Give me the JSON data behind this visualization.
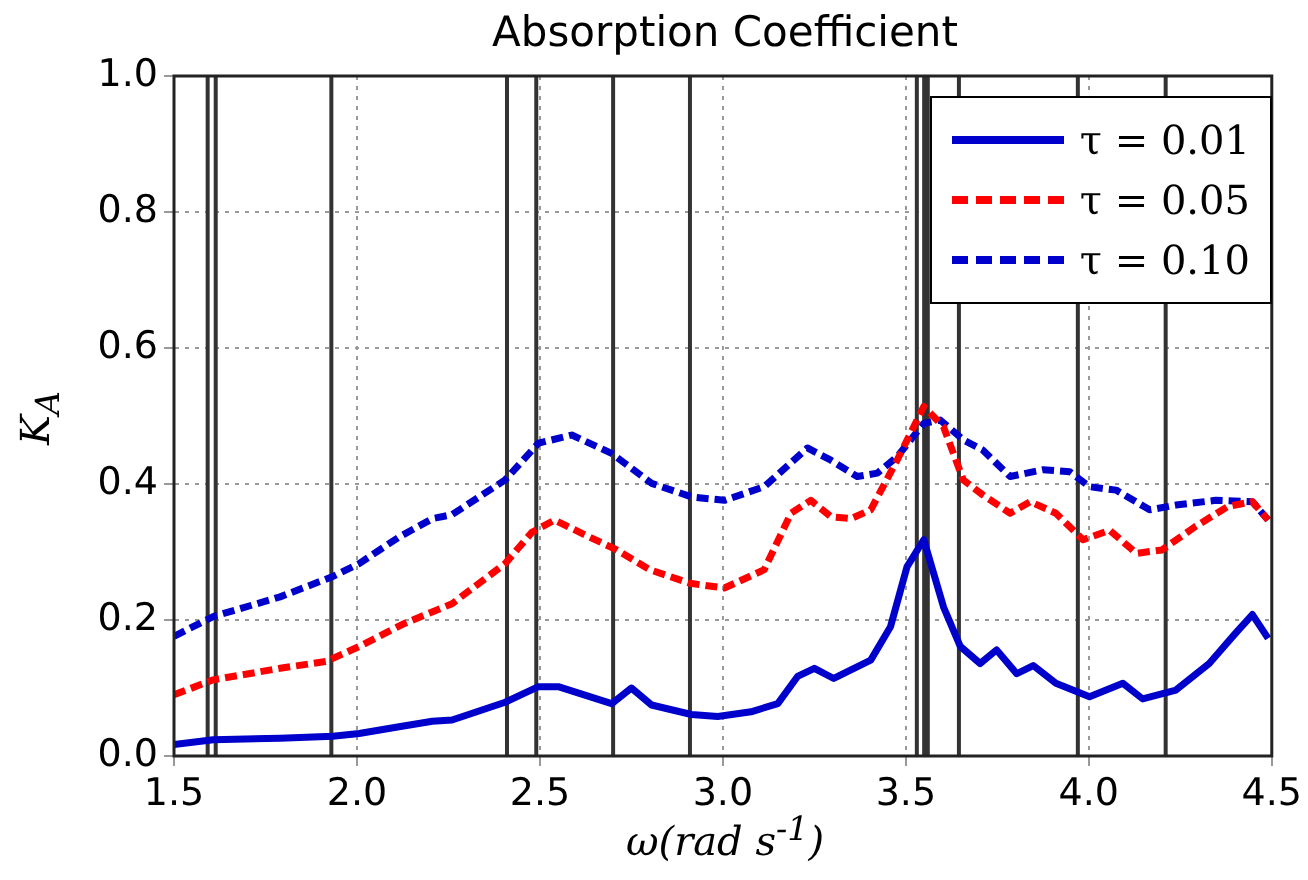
{
  "chart_data": {
    "type": "line",
    "title": "Absorption Coefficient",
    "xlabel": "ω(rad s$^{-1}$)",
    "ylabel": "K$_{A}$",
    "xlim": [
      1.5,
      4.5
    ],
    "ylim": [
      0,
      1
    ],
    "xticks": [
      1.5,
      {
        "value": 2,
        "label": "2.0"
      },
      2.5,
      {
        "value": 3,
        "label": "3.0"
      },
      3.5,
      {
        "value": 4,
        "label": "4.0"
      },
      4.5
    ],
    "yticks": [
      {
        "value": 0,
        "label": "0.0"
      },
      0.2,
      0.4,
      0.6,
      0.8,
      {
        "value": 1,
        "label": "1.0"
      }
    ],
    "grid": true,
    "legend": "top right",
    "series": [
      {
        "name": "τ = 0.01",
        "color": "#0000cc",
        "line_style": "solid",
        "x": [
          1.5,
          1.607,
          1.79,
          1.934,
          2.006,
          2.115,
          2.206,
          2.26,
          2.405,
          2.496,
          2.55,
          2.696,
          2.75,
          2.805,
          2.914,
          2.986,
          3.077,
          3.15,
          3.204,
          3.25,
          3.303,
          3.404,
          3.458,
          3.503,
          3.549,
          3.603,
          3.649,
          3.703,
          3.748,
          3.803,
          3.848,
          3.91,
          4.002,
          4.093,
          4.147,
          4.238,
          4.329,
          4.4,
          4.447,
          4.49
        ],
        "values": [
          0.017,
          0.024,
          0.026,
          0.029,
          0.033,
          0.043,
          0.051,
          0.053,
          0.079,
          0.102,
          0.102,
          0.077,
          0.1,
          0.075,
          0.061,
          0.058,
          0.065,
          0.077,
          0.117,
          0.129,
          0.114,
          0.141,
          0.19,
          0.278,
          0.318,
          0.219,
          0.161,
          0.136,
          0.156,
          0.121,
          0.133,
          0.107,
          0.087,
          0.107,
          0.084,
          0.097,
          0.136,
          0.18,
          0.208,
          0.173
        ]
      },
      {
        "name": "τ = 0.05",
        "color": "#ff0000",
        "line_style": "dashed",
        "x": [
          1.5,
          1.607,
          1.79,
          1.915,
          2.006,
          2.13,
          2.26,
          2.405,
          2.478,
          2.54,
          2.62,
          2.71,
          2.8,
          2.91,
          3.004,
          3.113,
          3.186,
          3.24,
          3.295,
          3.35,
          3.404,
          3.476,
          3.549,
          3.603,
          3.657,
          3.71,
          3.785,
          3.84,
          3.91,
          3.984,
          4.057,
          4.13,
          4.2,
          4.29,
          4.38,
          4.447,
          4.49
        ],
        "values": [
          0.09,
          0.112,
          0.129,
          0.139,
          0.161,
          0.195,
          0.224,
          0.283,
          0.329,
          0.347,
          0.326,
          0.303,
          0.274,
          0.254,
          0.247,
          0.274,
          0.357,
          0.376,
          0.352,
          0.349,
          0.362,
          0.435,
          0.514,
          0.484,
          0.406,
          0.384,
          0.357,
          0.374,
          0.357,
          0.318,
          0.332,
          0.298,
          0.303,
          0.337,
          0.367,
          0.374,
          0.347
        ]
      },
      {
        "name": "τ = 0.10",
        "color": "#0000cc",
        "line_style": "dashed",
        "x": [
          1.5,
          1.607,
          1.79,
          1.934,
          2.006,
          2.115,
          2.206,
          2.26,
          2.405,
          2.496,
          2.587,
          2.696,
          2.805,
          2.914,
          3.004,
          3.113,
          3.231,
          3.295,
          3.367,
          3.422,
          3.476,
          3.549,
          3.594,
          3.657,
          3.71,
          3.785,
          3.875,
          3.948,
          4.002,
          4.075,
          4.166,
          4.238,
          4.347,
          4.447,
          4.49
        ],
        "values": [
          0.176,
          0.205,
          0.234,
          0.264,
          0.283,
          0.322,
          0.349,
          0.355,
          0.406,
          0.46,
          0.472,
          0.445,
          0.401,
          0.381,
          0.376,
          0.396,
          0.453,
          0.435,
          0.411,
          0.416,
          0.44,
          0.489,
          0.494,
          0.465,
          0.45,
          0.411,
          0.421,
          0.418,
          0.396,
          0.391,
          0.362,
          0.369,
          0.376,
          0.374,
          0.347
        ]
      }
    ],
    "ref_lines": [
      {
        "axis": "x",
        "value": 1.592,
        "color": "#333333"
      },
      {
        "axis": "x",
        "value": 1.614,
        "color": "#333333"
      },
      {
        "axis": "x",
        "value": 1.93,
        "color": "#333333"
      },
      {
        "axis": "x",
        "value": 2.41,
        "color": "#333333"
      },
      {
        "axis": "x",
        "value": 2.49,
        "color": "#333333"
      },
      {
        "axis": "x",
        "value": 2.7,
        "color": "#333333"
      },
      {
        "axis": "x",
        "value": 2.91,
        "color": "#333333"
      },
      {
        "axis": "x",
        "value": 3.53,
        "color": "#333333"
      },
      {
        "axis": "x",
        "value": 3.55,
        "color": "#333333"
      },
      {
        "axis": "x",
        "value": 3.56,
        "color": "#333333"
      },
      {
        "axis": "x",
        "value": 3.645,
        "color": "#333333"
      },
      {
        "axis": "x",
        "value": 3.97,
        "color": "#333333"
      },
      {
        "axis": "x",
        "value": 4.21,
        "color": "#333333"
      }
    ]
  }
}
